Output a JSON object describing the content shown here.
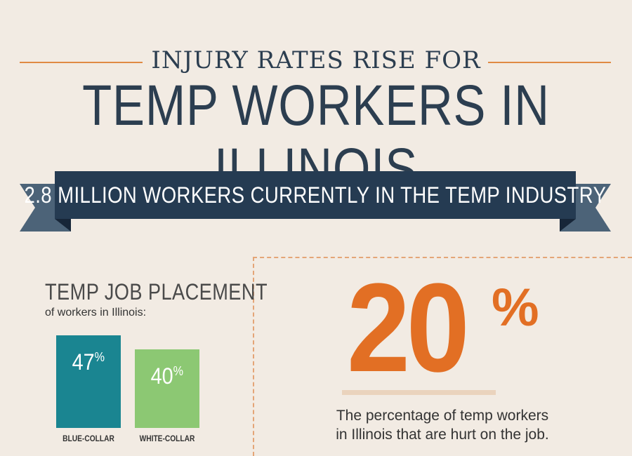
{
  "header": {
    "kicker": "INJURY RATES RISE FOR",
    "headline": "TEMP WORKERS IN ILLINOIS"
  },
  "banner": {
    "text": "2.8 MILLION WORKERS CURRENTLY IN THE TEMP INDUSTRY"
  },
  "placement": {
    "title": "TEMP JOB PLACEMENT",
    "subtitle": "of workers in Illinois:",
    "bars": [
      {
        "value_text": "47",
        "value": 47,
        "label": "BLUE-COLLAR",
        "color": "#1a8591"
      },
      {
        "value_text": "40",
        "value": 40,
        "label": "WHITE-COLLAR",
        "color": "#8cc873"
      }
    ],
    "percent_sign": "%"
  },
  "stat": {
    "number": "20",
    "percent_sign": "%",
    "description_line1": "The percentage of temp workers",
    "description_line2": "in Illinois that are hurt on the job."
  },
  "colors": {
    "background": "#f2ebe3",
    "navy": "#253b52",
    "orange": "#e26f24",
    "teal": "#1a8591",
    "green": "#8cc873"
  }
}
